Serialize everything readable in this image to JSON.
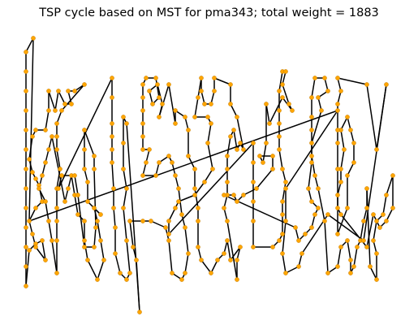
{
  "chart_data": {
    "type": "scatter",
    "title": "TSP cycle based on MST for pma343; total weight = 1883",
    "xlabel": "",
    "ylabel": "",
    "axes_visible": false,
    "grid": false,
    "node_color": "#FFA500",
    "edge_color": "#000000",
    "xlim": [
      20,
      495
    ],
    "ylim": [
      395,
      35
    ],
    "note": "values read off the figure; axes are hidden, so units follow the figure frame (y increases downward)",
    "tour": [
      [
        41,
        47
      ],
      [
        32,
        64
      ],
      [
        32,
        88
      ],
      [
        32,
        112
      ],
      [
        32,
        136
      ],
      [
        32,
        160
      ],
      [
        32,
        184
      ],
      [
        32,
        208
      ],
      [
        32,
        232
      ],
      [
        32,
        256
      ],
      [
        32,
        280
      ],
      [
        32,
        304
      ],
      [
        32,
        328
      ],
      [
        32,
        352
      ],
      [
        36,
        308
      ],
      [
        44,
        300
      ],
      [
        52,
        296
      ],
      [
        56,
        320
      ],
      [
        44,
        304
      ],
      [
        40,
        288
      ],
      [
        36,
        272
      ],
      [
        44,
        256
      ],
      [
        52,
        248
      ],
      [
        48,
        228
      ],
      [
        44,
        220
      ],
      [
        40,
        212
      ],
      [
        36,
        196
      ],
      [
        40,
        168
      ],
      [
        44,
        160
      ],
      [
        56,
        160
      ],
      [
        60,
        136
      ],
      [
        60,
        112
      ],
      [
        68,
        136
      ],
      [
        72,
        112
      ],
      [
        80,
        128
      ],
      [
        88,
        128
      ],
      [
        84,
        112
      ],
      [
        92,
        112
      ],
      [
        104,
        104
      ],
      [
        76,
        136
      ],
      [
        70,
        152
      ],
      [
        70,
        168
      ],
      [
        70,
        184
      ],
      [
        74,
        208
      ],
      [
        70,
        232
      ],
      [
        70,
        256
      ],
      [
        70,
        272
      ],
      [
        70,
        296
      ],
      [
        70,
        336
      ],
      [
        64,
        296
      ],
      [
        60,
        272
      ],
      [
        56,
        248
      ],
      [
        48,
        232
      ],
      [
        52,
        216
      ],
      [
        56,
        200
      ],
      [
        60,
        184
      ],
      [
        64,
        168
      ],
      [
        80,
        248
      ],
      [
        84,
        232
      ],
      [
        88,
        216
      ],
      [
        92,
        240
      ],
      [
        96,
        264
      ],
      [
        104,
        272
      ],
      [
        104,
        296
      ],
      [
        108,
        320
      ],
      [
        120,
        344
      ],
      [
        128,
        320
      ],
      [
        124,
        296
      ],
      [
        120,
        272
      ],
      [
        116,
        256
      ],
      [
        124,
        264
      ],
      [
        108,
        248
      ],
      [
        108,
        224
      ],
      [
        104,
        208
      ],
      [
        104,
        184
      ],
      [
        104,
        160
      ],
      [
        116,
        192
      ],
      [
        116,
        208
      ],
      [
        118,
        280
      ],
      [
        116,
        304
      ],
      [
        104,
        304
      ],
      [
        96,
        240
      ],
      [
        92,
        216
      ],
      [
        76,
        216
      ],
      [
        72,
        232
      ],
      [
        138,
        96
      ],
      [
        138,
        120
      ],
      [
        138,
        152
      ],
      [
        138,
        168
      ],
      [
        138,
        184
      ],
      [
        138,
        200
      ],
      [
        140,
        232
      ],
      [
        140,
        256
      ],
      [
        142,
        280
      ],
      [
        142,
        312
      ],
      [
        148,
        336
      ],
      [
        156,
        344
      ],
      [
        160,
        336
      ],
      [
        156,
        296
      ],
      [
        152,
        256
      ],
      [
        156,
        232
      ],
      [
        152,
        208
      ],
      [
        152,
        176
      ],
      [
        152,
        144
      ],
      [
        156,
        152
      ],
      [
        172,
        384
      ],
      [
        168,
        320
      ],
      [
        164,
        304
      ],
      [
        160,
        272
      ],
      [
        176,
        272
      ],
      [
        186,
        272
      ],
      [
        204,
        280
      ],
      [
        208,
        296
      ],
      [
        212,
        336
      ],
      [
        224,
        344
      ],
      [
        228,
        336
      ],
      [
        232,
        312
      ],
      [
        228,
        280
      ],
      [
        224,
        264
      ],
      [
        220,
        232
      ],
      [
        216,
        216
      ],
      [
        212,
        200
      ],
      [
        208,
        192
      ],
      [
        196,
        200
      ],
      [
        192,
        216
      ],
      [
        176,
        216
      ],
      [
        180,
        200
      ],
      [
        184,
        184
      ],
      [
        176,
        184
      ],
      [
        176,
        168
      ],
      [
        176,
        152
      ],
      [
        176,
        136
      ],
      [
        176,
        120
      ],
      [
        176,
        104
      ],
      [
        180,
        96
      ],
      [
        192,
        96
      ],
      [
        196,
        120
      ],
      [
        188,
        128
      ],
      [
        184,
        112
      ],
      [
        194,
        104
      ],
      [
        200,
        128
      ],
      [
        196,
        144
      ],
      [
        208,
        104
      ],
      [
        216,
        152
      ],
      [
        216,
        136
      ],
      [
        228,
        144
      ],
      [
        232,
        160
      ],
      [
        232,
        192
      ],
      [
        240,
        208
      ],
      [
        240,
        232
      ],
      [
        244,
        256
      ],
      [
        244,
        272
      ],
      [
        244,
        304
      ],
      [
        248,
        320
      ],
      [
        260,
        336
      ],
      [
        268,
        320
      ],
      [
        276,
        312
      ],
      [
        280,
        296
      ],
      [
        284,
        320
      ],
      [
        296,
        304
      ],
      [
        292,
        320
      ],
      [
        292,
        344
      ],
      [
        280,
        272
      ],
      [
        276,
        256
      ],
      [
        280,
        240
      ],
      [
        280,
        224
      ],
      [
        280,
        208
      ],
      [
        280,
        192
      ],
      [
        284,
        168
      ],
      [
        288,
        160
      ],
      [
        292,
        184
      ],
      [
        296,
        176
      ],
      [
        300,
        184
      ],
      [
        292,
        144
      ],
      [
        284,
        128
      ],
      [
        284,
        104
      ],
      [
        264,
        96
      ],
      [
        264,
        112
      ],
      [
        260,
        128
      ],
      [
        252,
        128
      ],
      [
        248,
        112
      ],
      [
        248,
        96
      ],
      [
        244,
        120
      ],
      [
        240,
        144
      ],
      [
        256,
        144
      ],
      [
        260,
        152
      ],
      [
        256,
        176
      ],
      [
        262,
        208
      ],
      [
        252,
        224
      ],
      [
        240,
        240
      ],
      [
        220,
        248
      ],
      [
        216,
        256
      ],
      [
        208,
        272
      ],
      [
        208,
        288
      ],
      [
        312,
        176
      ],
      [
        312,
        200
      ],
      [
        312,
        224
      ],
      [
        312,
        248
      ],
      [
        312,
        272
      ],
      [
        312,
        304
      ],
      [
        336,
        304
      ],
      [
        344,
        296
      ],
      [
        348,
        288
      ],
      [
        348,
        264
      ],
      [
        348,
        248
      ],
      [
        352,
        224
      ],
      [
        348,
        208
      ],
      [
        344,
        184
      ],
      [
        344,
        168
      ],
      [
        344,
        152
      ],
      [
        344,
        136
      ],
      [
        344,
        112
      ],
      [
        348,
        88
      ],
      [
        352,
        88
      ],
      [
        348,
        104
      ],
      [
        356,
        128
      ],
      [
        360,
        136
      ],
      [
        348,
        120
      ],
      [
        332,
        152
      ],
      [
        328,
        128
      ],
      [
        328,
        176
      ],
      [
        324,
        200
      ],
      [
        320,
        192
      ],
      [
        336,
        192
      ],
      [
        336,
        208
      ],
      [
        316,
        232
      ],
      [
        300,
        240
      ],
      [
        292,
        248
      ],
      [
        288,
        240
      ],
      [
        276,
        240
      ],
      [
        364,
        280
      ],
      [
        368,
        296
      ],
      [
        376,
        288
      ],
      [
        384,
        280
      ],
      [
        388,
        264
      ],
      [
        392,
        256
      ],
      [
        384,
        248
      ],
      [
        380,
        232
      ],
      [
        384,
        200
      ],
      [
        384,
        160
      ],
      [
        384,
        144
      ],
      [
        384,
        120
      ],
      [
        388,
        96
      ],
      [
        400,
        96
      ],
      [
        404,
        112
      ],
      [
        392,
        120
      ],
      [
        396,
        136
      ],
      [
        384,
        176
      ],
      [
        384,
        192
      ],
      [
        388,
        216
      ],
      [
        392,
        232
      ],
      [
        400,
        272
      ],
      [
        404,
        336
      ],
      [
        416,
        328
      ],
      [
        420,
        304
      ],
      [
        428,
        296
      ],
      [
        432,
        320
      ],
      [
        432,
        336
      ],
      [
        436,
        328
      ],
      [
        440,
        304
      ],
      [
        444,
        296
      ],
      [
        448,
        272
      ],
      [
        452,
        256
      ],
      [
        452,
        232
      ],
      [
        456,
        328
      ],
      [
        464,
        344
      ],
      [
        464,
        312
      ],
      [
        460,
        296
      ],
      [
        464,
        272
      ],
      [
        472,
        264
      ],
      [
        476,
        240
      ],
      [
        484,
        216
      ],
      [
        484,
        256
      ],
      [
        476,
        272
      ],
      [
        468,
        280
      ],
      [
        460,
        264
      ],
      [
        452,
        304
      ],
      [
        420,
        264
      ],
      [
        416,
        256
      ],
      [
        416,
        240
      ],
      [
        420,
        224
      ],
      [
        420,
        208
      ],
      [
        424,
        184
      ],
      [
        420,
        160
      ],
      [
        428,
        144
      ],
      [
        432,
        160
      ],
      [
        436,
        176
      ],
      [
        436,
        200
      ],
      [
        428,
        216
      ],
      [
        428,
        256
      ],
      [
        416,
        288
      ],
      [
        416,
        208
      ],
      [
        416,
        176
      ],
      [
        416,
        160
      ],
      [
        416,
        128
      ],
      [
        420,
        112
      ],
      [
        416,
        96
      ],
      [
        452,
        104
      ],
      [
        464,
        184
      ],
      [
        476,
        104
      ],
      [
        448,
        296
      ],
      [
        404,
        264
      ],
      [
        372,
        312
      ],
      [
        368,
        328
      ],
      [
        352,
        336
      ],
      [
        348,
        312
      ],
      [
        352,
        272
      ],
      [
        352,
        232
      ],
      [
        416,
        136
      ],
      [
        36,
        272
      ],
      [
        41,
        47
      ]
    ]
  }
}
